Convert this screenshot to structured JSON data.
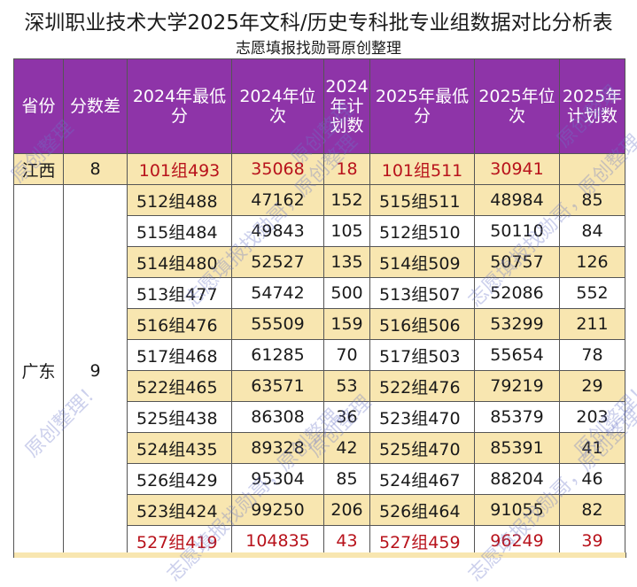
{
  "title": "深圳职业技术大学2025年文科/历史专科批专业组数据对比分析表",
  "subtitle": "志愿填报找勋哥原创整理",
  "headers": {
    "province": "省份",
    "score_diff": "分数差",
    "min_2024": "2024年最低分",
    "rank_2024": "2024年位次",
    "plan_2024": "2024年计划数",
    "min_2025": "2025年最低分",
    "rank_2025": "2025年位次",
    "plan_2025": "2025年计划数"
  },
  "jiangxi": {
    "province": "江西",
    "score_diff": "8",
    "min_2024": "101组493",
    "rank_2024": "35068",
    "plan_2024": "18",
    "min_2025": "101组511",
    "rank_2025": "30941",
    "plan_2025": ""
  },
  "guangdong": {
    "province": "广东",
    "score_diff": "9",
    "rows": [
      {
        "min_2024": "512组488",
        "rank_2024": "47162",
        "plan_2024": "152",
        "min_2025": "515组511",
        "rank_2025": "48984",
        "plan_2025": "85"
      },
      {
        "min_2024": "515组484",
        "rank_2024": "49843",
        "plan_2024": "105",
        "min_2025": "512组510",
        "rank_2025": "50110",
        "plan_2025": "84"
      },
      {
        "min_2024": "514组480",
        "rank_2024": "52527",
        "plan_2024": "135",
        "min_2025": "514组509",
        "rank_2025": "50757",
        "plan_2025": "126"
      },
      {
        "min_2024": "513组477",
        "rank_2024": "54742",
        "plan_2024": "500",
        "min_2025": "513组507",
        "rank_2025": "52086",
        "plan_2025": "552"
      },
      {
        "min_2024": "516组476",
        "rank_2024": "55509",
        "plan_2024": "159",
        "min_2025": "516组506",
        "rank_2025": "53299",
        "plan_2025": "211"
      },
      {
        "min_2024": "517组468",
        "rank_2024": "61285",
        "plan_2024": "70",
        "min_2025": "517组503",
        "rank_2025": "55654",
        "plan_2025": "78"
      },
      {
        "min_2024": "522组465",
        "rank_2024": "63571",
        "plan_2024": "53",
        "min_2025": "522组476",
        "rank_2025": "79219",
        "plan_2025": "29"
      },
      {
        "min_2024": "525组438",
        "rank_2024": "86308",
        "plan_2024": "36",
        "min_2025": "523组470",
        "rank_2025": "85379",
        "plan_2025": "203"
      },
      {
        "min_2024": "524组435",
        "rank_2024": "89328",
        "plan_2024": "42",
        "min_2025": "525组470",
        "rank_2025": "85391",
        "plan_2025": "41"
      },
      {
        "min_2024": "526组429",
        "rank_2024": "95304",
        "plan_2024": "85",
        "min_2025": "524组467",
        "rank_2025": "88204",
        "plan_2025": "46"
      },
      {
        "min_2024": "523组424",
        "rank_2024": "99250",
        "plan_2024": "206",
        "min_2025": "526组464",
        "rank_2025": "91055",
        "plan_2025": "82"
      },
      {
        "min_2024": "527组419",
        "rank_2024": "104835",
        "plan_2024": "43",
        "min_2025": "527组459",
        "rank_2025": "96249",
        "plan_2025": "39"
      }
    ]
  },
  "watermarks": [
    "原创整理",
    "志愿填报找勋哥，原创整理",
    "原创整理！"
  ],
  "colors": {
    "header_bg": "#8e34a8",
    "stripe": "#f8e6b0",
    "highlight_text": "#b8121b"
  }
}
